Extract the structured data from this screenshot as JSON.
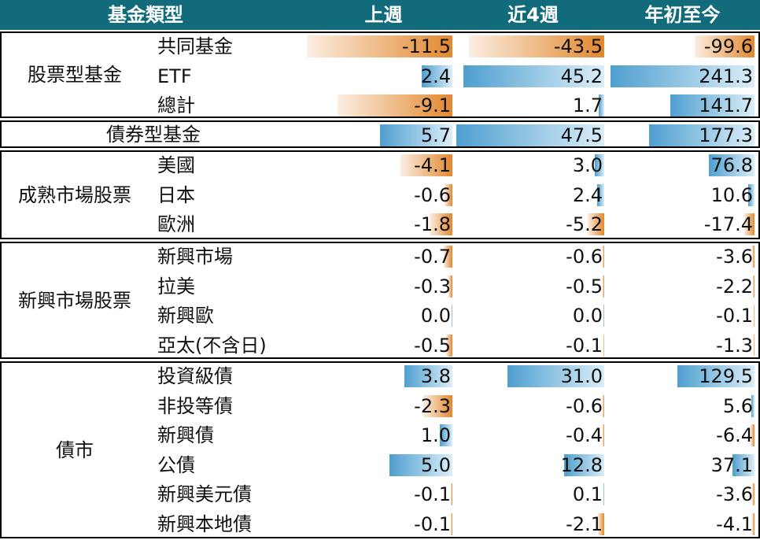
{
  "headers": {
    "type": "基金類型",
    "week": "上週",
    "four_weeks": "近4週",
    "ytd": "年初至今"
  },
  "groups": [
    {
      "label": "股票型基金",
      "rows": [
        {
          "name": "共同基金",
          "week": -11.5,
          "four_weeks": -43.5,
          "ytd": -99.6
        },
        {
          "name": "ETF",
          "week": 2.4,
          "four_weeks": 45.2,
          "ytd": 241.3
        },
        {
          "name": "總計",
          "week": -9.1,
          "four_weeks": 1.7,
          "ytd": 141.7
        }
      ]
    },
    {
      "label": "債券型基金",
      "rows": [
        {
          "name": "",
          "week": 5.7,
          "four_weeks": 47.5,
          "ytd": 177.3
        }
      ]
    },
    {
      "label": "成熟市場股票",
      "rows": [
        {
          "name": "美國",
          "week": -4.1,
          "four_weeks": 3.0,
          "ytd": 76.8
        },
        {
          "name": "日本",
          "week": -0.6,
          "four_weeks": 2.4,
          "ytd": 10.6
        },
        {
          "name": "歐洲",
          "week": -1.8,
          "four_weeks": -5.2,
          "ytd": -17.4
        }
      ]
    },
    {
      "label": "新興市場股票",
      "rows": [
        {
          "name": "新興市場",
          "week": -0.7,
          "four_weeks": -0.6,
          "ytd": -3.6
        },
        {
          "name": "拉美",
          "week": -0.3,
          "four_weeks": -0.5,
          "ytd": -2.2
        },
        {
          "name": "新興歐",
          "week": 0.0,
          "four_weeks": 0.0,
          "ytd": -0.1
        },
        {
          "name": "亞太(不含日)",
          "week": -0.5,
          "four_weeks": -0.1,
          "ytd": -1.3
        }
      ]
    },
    {
      "label": "債市",
      "rows": [
        {
          "name": "投資級債",
          "week": 3.8,
          "four_weeks": 31.0,
          "ytd": 129.5
        },
        {
          "name": "非投等債",
          "week": -2.3,
          "four_weeks": -0.6,
          "ytd": 5.6
        },
        {
          "name": "新興債",
          "week": 1.0,
          "four_weeks": -0.4,
          "ytd": -6.4
        },
        {
          "name": "公債",
          "week": 5.0,
          "four_weeks": 12.8,
          "ytd": 37.1
        },
        {
          "name": "新興美元債",
          "week": -0.1,
          "four_weeks": 0.1,
          "ytd": -3.6
        },
        {
          "name": "新興本地債",
          "week": -0.1,
          "four_weeks": -2.1,
          "ytd": -4.1
        }
      ]
    }
  ],
  "colors": {
    "header_bg": "#116b7a",
    "header_text": "#ffffff",
    "positive_bar": "#4f9fd0",
    "negative_bar": "#e2882f"
  }
}
